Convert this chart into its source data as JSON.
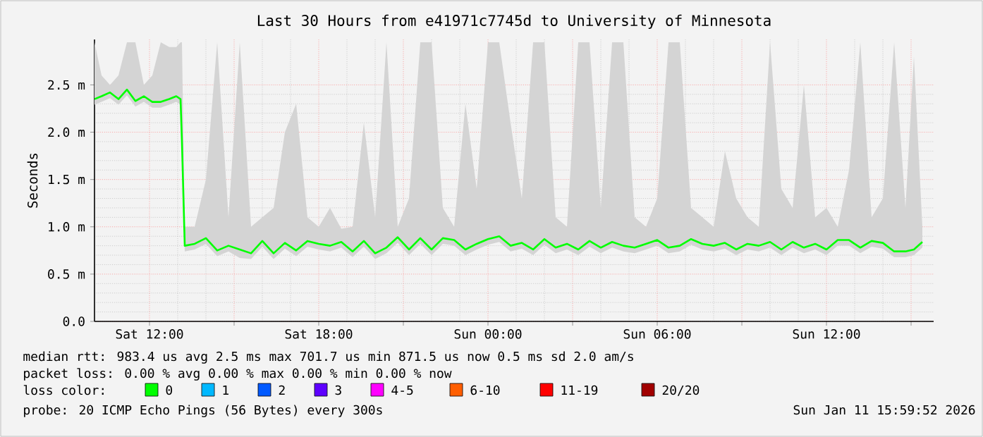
{
  "chart_data": {
    "type": "line",
    "title": "Last 30 Hours from e41971c7745d to University of Minnesota",
    "ylabel": "Seconds",
    "legend_title": "loss color:",
    "legend": "bottom",
    "grid": true,
    "xlim": [
      "2026-01-10T10:03",
      "2026-01-11T15:48"
    ],
    "ylim": [
      0,
      2.98
    ],
    "xticks": [
      {
        "value": "2026-01-10T12:00",
        "label": "Sat 12:00"
      },
      {
        "value": "2026-01-10T15:00",
        "label": null
      },
      {
        "value": "2026-01-10T18:00",
        "label": "Sat 18:00"
      },
      {
        "value": "2026-01-10T21:00",
        "label": null
      },
      {
        "value": "2026-01-11T00:00",
        "label": "Sun 00:00"
      },
      {
        "value": "2026-01-11T03:00",
        "label": null
      },
      {
        "value": "2026-01-11T06:00",
        "label": "Sun 06:00"
      },
      {
        "value": "2026-01-11T09:00",
        "label": null
      },
      {
        "value": "2026-01-11T12:00",
        "label": "Sun 12:00"
      },
      {
        "value": "2026-01-11T15:00",
        "label": null
      }
    ],
    "yticks": [
      {
        "value": 0,
        "label": "0.0"
      },
      {
        "value": 0.5,
        "label": "0.5 m"
      },
      {
        "value": 1.0,
        "label": "1.0 m"
      },
      {
        "value": 1.5,
        "label": "1.5 m"
      },
      {
        "value": 2.0,
        "label": "2.0 m"
      },
      {
        "value": 2.5,
        "label": "2.5 m"
      }
    ],
    "x": [
      "2026-01-10T10:03",
      "2026-01-10T10:18",
      "2026-01-10T10:36",
      "2026-01-10T10:54",
      "2026-01-10T11:12",
      "2026-01-10T11:30",
      "2026-01-10T11:48",
      "2026-01-10T12:06",
      "2026-01-10T12:24",
      "2026-01-10T12:42",
      "2026-01-10T12:57",
      "2026-01-10T13:06",
      "2026-01-10T13:09",
      "2026-01-10T13:15",
      "2026-01-10T13:36",
      "2026-01-10T14:00",
      "2026-01-10T14:24",
      "2026-01-10T14:48",
      "2026-01-10T15:12",
      "2026-01-10T15:36",
      "2026-01-10T16:00",
      "2026-01-10T16:24",
      "2026-01-10T16:48",
      "2026-01-10T17:12",
      "2026-01-10T17:36",
      "2026-01-10T18:00",
      "2026-01-10T18:24",
      "2026-01-10T18:48",
      "2026-01-10T19:12",
      "2026-01-10T19:36",
      "2026-01-10T20:00",
      "2026-01-10T20:24",
      "2026-01-10T20:48",
      "2026-01-10T21:12",
      "2026-01-10T21:36",
      "2026-01-10T22:00",
      "2026-01-10T22:24",
      "2026-01-10T22:48",
      "2026-01-10T23:12",
      "2026-01-10T23:36",
      "2026-01-11T00:00",
      "2026-01-11T00:24",
      "2026-01-11T00:48",
      "2026-01-11T01:12",
      "2026-01-11T01:36",
      "2026-01-11T02:00",
      "2026-01-11T02:24",
      "2026-01-11T02:48",
      "2026-01-11T03:12",
      "2026-01-11T03:36",
      "2026-01-11T04:00",
      "2026-01-11T04:24",
      "2026-01-11T04:48",
      "2026-01-11T05:12",
      "2026-01-11T05:36",
      "2026-01-11T06:00",
      "2026-01-11T06:24",
      "2026-01-11T06:48",
      "2026-01-11T07:12",
      "2026-01-11T07:36",
      "2026-01-11T08:00",
      "2026-01-11T08:24",
      "2026-01-11T08:48",
      "2026-01-11T09:12",
      "2026-01-11T09:36",
      "2026-01-11T10:00",
      "2026-01-11T10:24",
      "2026-01-11T10:48",
      "2026-01-11T11:12",
      "2026-01-11T11:36",
      "2026-01-11T12:00",
      "2026-01-11T12:24",
      "2026-01-11T12:48",
      "2026-01-11T13:12",
      "2026-01-11T13:36",
      "2026-01-11T14:00",
      "2026-01-11T14:24",
      "2026-01-11T14:48",
      "2026-01-11T15:06",
      "2026-01-11T15:24"
    ],
    "series": [
      {
        "name": "0",
        "color": "#00ff00",
        "values": [
          2.35,
          2.38,
          2.42,
          2.35,
          2.45,
          2.33,
          2.38,
          2.32,
          2.32,
          2.35,
          2.38,
          2.35,
          1.9,
          0.8,
          0.82,
          0.88,
          0.75,
          0.8,
          0.76,
          0.72,
          0.85,
          0.72,
          0.83,
          0.75,
          0.85,
          0.82,
          0.8,
          0.84,
          0.74,
          0.85,
          0.72,
          0.78,
          0.89,
          0.76,
          0.88,
          0.76,
          0.88,
          0.86,
          0.76,
          0.82,
          0.87,
          0.9,
          0.8,
          0.83,
          0.76,
          0.87,
          0.78,
          0.82,
          0.76,
          0.85,
          0.78,
          0.84,
          0.8,
          0.78,
          0.82,
          0.86,
          0.78,
          0.8,
          0.87,
          0.82,
          0.8,
          0.83,
          0.76,
          0.82,
          0.8,
          0.84,
          0.76,
          0.84,
          0.78,
          0.82,
          0.76,
          0.86,
          0.86,
          0.78,
          0.85,
          0.83,
          0.74,
          0.74,
          0.76,
          0.84
        ],
        "lower": [
          2.29,
          2.32,
          2.36,
          2.29,
          2.39,
          2.27,
          2.32,
          2.26,
          2.26,
          2.29,
          2.32,
          2.29,
          1.84,
          0.74,
          0.76,
          0.82,
          0.69,
          0.74,
          0.67,
          0.66,
          0.79,
          0.66,
          0.77,
          0.69,
          0.79,
          0.76,
          0.74,
          0.78,
          0.68,
          0.79,
          0.66,
          0.72,
          0.83,
          0.7,
          0.82,
          0.7,
          0.82,
          0.8,
          0.7,
          0.76,
          0.81,
          0.84,
          0.74,
          0.77,
          0.7,
          0.81,
          0.72,
          0.76,
          0.7,
          0.79,
          0.72,
          0.78,
          0.74,
          0.72,
          0.76,
          0.8,
          0.72,
          0.74,
          0.81,
          0.76,
          0.74,
          0.77,
          0.7,
          0.76,
          0.74,
          0.78,
          0.7,
          0.78,
          0.72,
          0.76,
          0.7,
          0.8,
          0.8,
          0.72,
          0.79,
          0.77,
          0.68,
          0.68,
          0.7,
          0.78
        ],
        "upper": [
          2.95,
          2.6,
          2.5,
          2.6,
          2.95,
          2.95,
          2.5,
          2.6,
          2.95,
          2.9,
          2.9,
          2.95,
          2.95,
          1.0,
          1.0,
          1.5,
          2.95,
          1.1,
          2.95,
          1.0,
          1.1,
          1.2,
          2.0,
          2.3,
          1.1,
          1.0,
          1.2,
          0.98,
          1.0,
          2.1,
          1.1,
          2.95,
          1.0,
          1.3,
          2.95,
          2.95,
          1.2,
          1.0,
          2.3,
          1.4,
          2.95,
          2.95,
          2.1,
          1.3,
          2.95,
          2.95,
          1.1,
          1.0,
          2.95,
          2.95,
          1.2,
          2.95,
          2.95,
          1.1,
          1.0,
          1.3,
          2.95,
          2.95,
          1.2,
          1.1,
          1.0,
          1.8,
          1.3,
          1.1,
          1.0,
          2.95,
          1.4,
          1.2,
          2.5,
          1.1,
          1.2,
          1.0,
          1.6,
          2.95,
          1.1,
          1.3,
          2.95,
          1.2,
          2.8,
          1.0
        ]
      },
      {
        "name": "1",
        "color": "#00b8ff",
        "values": [
          null,
          null,
          null,
          null,
          null,
          null,
          null,
          null,
          null,
          null,
          null,
          null,
          null,
          null,
          null,
          null,
          null,
          null,
          null,
          null,
          null,
          null,
          null,
          null,
          null,
          null,
          null,
          null,
          null,
          null,
          null,
          null,
          null,
          null,
          null,
          null,
          null,
          null,
          null,
          null,
          null,
          null,
          null,
          null,
          null,
          null,
          null,
          null,
          null,
          null,
          null,
          null,
          null,
          null,
          null,
          null,
          null,
          null,
          null,
          null,
          null,
          null,
          null,
          null,
          null,
          null,
          null,
          null,
          null,
          null,
          null,
          null,
          null,
          null,
          null,
          null,
          null,
          null,
          null,
          null
        ]
      },
      {
        "name": "2",
        "color": "#0059ff",
        "values": [
          null,
          null,
          null,
          null,
          null,
          null,
          null,
          null,
          null,
          null,
          null,
          null,
          null,
          null,
          null,
          null,
          null,
          null,
          null,
          null,
          null,
          null,
          null,
          null,
          null,
          null,
          null,
          null,
          null,
          null,
          null,
          null,
          null,
          null,
          null,
          null,
          null,
          null,
          null,
          null,
          null,
          null,
          null,
          null,
          null,
          null,
          null,
          null,
          null,
          null,
          null,
          null,
          null,
          null,
          null,
          null,
          null,
          null,
          null,
          null,
          null,
          null,
          null,
          null,
          null,
          null,
          null,
          null,
          null,
          null,
          null,
          null,
          null,
          null,
          null,
          null,
          null,
          null,
          null,
          null
        ]
      },
      {
        "name": "3",
        "color": "#5e00ff",
        "values": [
          null,
          null,
          null,
          null,
          null,
          null,
          null,
          null,
          null,
          null,
          null,
          null,
          null,
          null,
          null,
          null,
          null,
          null,
          null,
          null,
          null,
          null,
          null,
          null,
          null,
          null,
          null,
          null,
          null,
          null,
          null,
          null,
          null,
          null,
          null,
          null,
          null,
          null,
          null,
          null,
          null,
          null,
          null,
          null,
          null,
          null,
          null,
          null,
          null,
          null,
          null,
          null,
          null,
          null,
          null,
          null,
          null,
          null,
          null,
          null,
          null,
          null,
          null,
          null,
          null,
          null,
          null,
          null,
          null,
          null,
          null,
          null,
          null,
          null,
          null,
          null,
          null,
          null,
          null,
          null
        ]
      },
      {
        "name": "4-5",
        "color": "#ff00ff",
        "values": [
          null,
          null,
          null,
          null,
          null,
          null,
          null,
          null,
          null,
          null,
          null,
          null,
          null,
          null,
          null,
          null,
          null,
          null,
          null,
          null,
          null,
          null,
          null,
          null,
          null,
          null,
          null,
          null,
          null,
          null,
          null,
          null,
          null,
          null,
          null,
          null,
          null,
          null,
          null,
          null,
          null,
          null,
          null,
          null,
          null,
          null,
          null,
          null,
          null,
          null,
          null,
          null,
          null,
          null,
          null,
          null,
          null,
          null,
          null,
          null,
          null,
          null,
          null,
          null,
          null,
          null,
          null,
          null,
          null,
          null,
          null,
          null,
          null,
          null,
          null,
          null,
          null,
          null,
          null,
          null
        ]
      },
      {
        "name": "6-10",
        "color": "#ff5e00",
        "values": [
          null,
          null,
          null,
          null,
          null,
          null,
          null,
          null,
          null,
          null,
          null,
          null,
          null,
          null,
          null,
          null,
          null,
          null,
          null,
          null,
          null,
          null,
          null,
          null,
          null,
          null,
          null,
          null,
          null,
          null,
          null,
          null,
          null,
          null,
          null,
          null,
          null,
          null,
          null,
          null,
          null,
          null,
          null,
          null,
          null,
          null,
          null,
          null,
          null,
          null,
          null,
          null,
          null,
          null,
          null,
          null,
          null,
          null,
          null,
          null,
          null,
          null,
          null,
          null,
          null,
          null,
          null,
          null,
          null,
          null,
          null,
          null,
          null,
          null,
          null,
          null,
          null,
          null,
          null,
          null
        ]
      },
      {
        "name": "11-19",
        "color": "#ff0000",
        "values": [
          null,
          null,
          null,
          null,
          null,
          null,
          null,
          null,
          null,
          null,
          null,
          null,
          null,
          null,
          null,
          null,
          null,
          null,
          null,
          null,
          null,
          null,
          null,
          null,
          null,
          null,
          null,
          null,
          null,
          null,
          null,
          null,
          null,
          null,
          null,
          null,
          null,
          null,
          null,
          null,
          null,
          null,
          null,
          null,
          null,
          null,
          null,
          null,
          null,
          null,
          null,
          null,
          null,
          null,
          null,
          null,
          null,
          null,
          null,
          null,
          null,
          null,
          null,
          null,
          null,
          null,
          null,
          null,
          null,
          null,
          null,
          null,
          null,
          null,
          null,
          null,
          null,
          null,
          null,
          null
        ]
      },
      {
        "name": "20/20",
        "color": "#a10000",
        "values": [
          null,
          null,
          null,
          null,
          null,
          null,
          null,
          null,
          null,
          null,
          null,
          null,
          null,
          null,
          null,
          null,
          null,
          null,
          null,
          null,
          null,
          null,
          null,
          null,
          null,
          null,
          null,
          null,
          null,
          null,
          null,
          null,
          null,
          null,
          null,
          null,
          null,
          null,
          null,
          null,
          null,
          null,
          null,
          null,
          null,
          null,
          null,
          null,
          null,
          null,
          null,
          null,
          null,
          null,
          null,
          null,
          null,
          null,
          null,
          null,
          null,
          null,
          null,
          null,
          null,
          null,
          null,
          null,
          null,
          null,
          null,
          null,
          null,
          null,
          null,
          null,
          null,
          null,
          null,
          null
        ]
      }
    ],
    "annotations": [
      "median rtt: 983.4 us avg 2.5 ms max 701.7 us min 871.5 us now 0.5 ms sd 2.0 am/s",
      "packet loss: 0.00 % avg 0.00 % max 0.00 % min 0.00 % now",
      "probe: 20 ICMP Echo Pings (56 Bytes) every 300s",
      "Sun Jan 11 15:59:52 2026"
    ]
  }
}
